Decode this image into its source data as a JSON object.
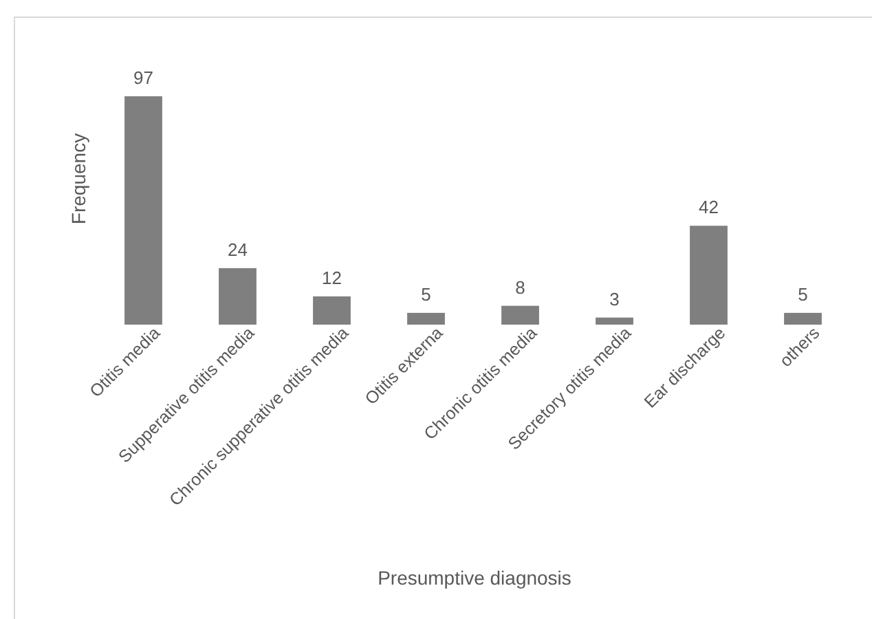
{
  "chart_data": {
    "type": "bar",
    "xlabel": "Presumptive diagnosis",
    "ylabel": "Frequency",
    "categories": [
      "Otitis media",
      "Supperative otitis media",
      "Chronic supperative otitis media",
      "Otitis externa",
      "Chronic otitis media",
      "Secretory otitis media",
      "Ear discharge",
      "others"
    ],
    "values": [
      97,
      24,
      12,
      5,
      8,
      3,
      42,
      5
    ],
    "color": "#7f7f7f",
    "data_labels": true,
    "tick_labels": "x"
  }
}
